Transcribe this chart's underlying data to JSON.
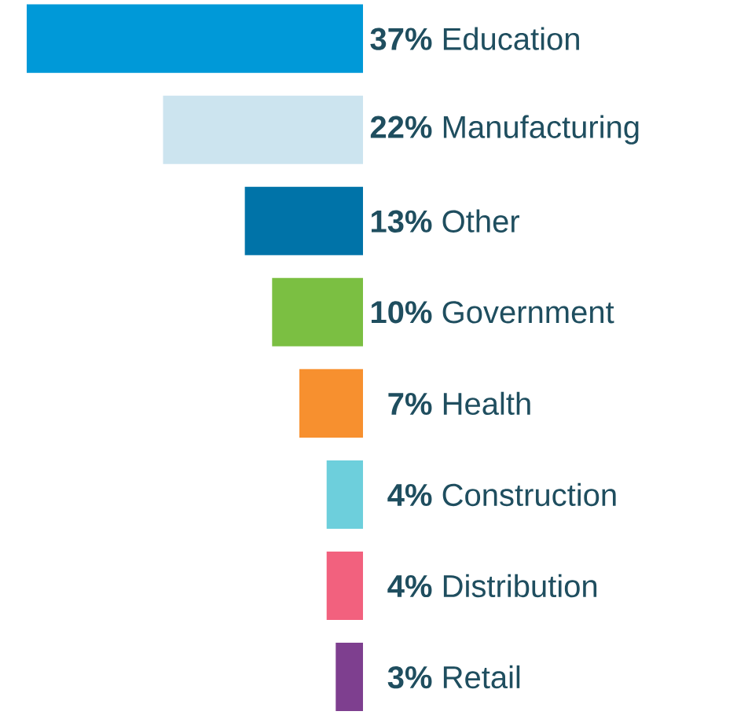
{
  "chart_data": {
    "type": "bar",
    "orientation": "horizontal",
    "categories": [
      "Education",
      "Manufacturing",
      "Other",
      "Government",
      "Health",
      "Construction",
      "Distribution",
      "Retail"
    ],
    "values": [
      37,
      22,
      13,
      10,
      7,
      4,
      4,
      3
    ],
    "value_labels": [
      "37%",
      "22%",
      "13%",
      "10%",
      "7%",
      "4%",
      "4%",
      "3%"
    ],
    "colors": [
      "#0099d8",
      "#cce4ef",
      "#0073a8",
      "#7bbf42",
      "#f7902f",
      "#6dcfdc",
      "#f2617e",
      "#7e3f8f"
    ],
    "xlim": [
      37,
      0
    ]
  }
}
